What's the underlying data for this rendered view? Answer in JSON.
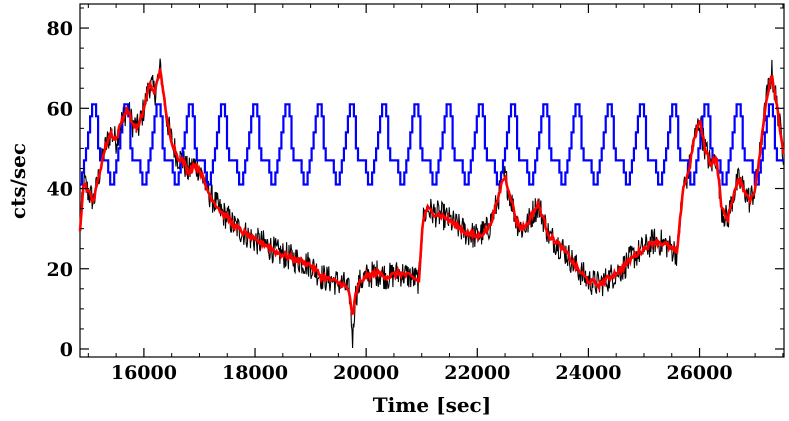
{
  "chart_data": {
    "type": "line",
    "title": "",
    "xlabel": "Time [sec]",
    "ylabel": "cts/sec",
    "xlim": [
      14850,
      27520
    ],
    "ylim": [
      -2,
      86
    ],
    "xticks": [
      16000,
      18000,
      20000,
      22000,
      24000,
      26000
    ],
    "yticks": [
      0,
      20,
      40,
      60,
      80
    ],
    "grid": false,
    "legend": "none",
    "series": [
      {
        "style": "noisy-raw",
        "color": "#000000",
        "noise_amplitude": 3.5,
        "x": [
          14850,
          14920,
          15000,
          15100,
          15200,
          15300,
          15400,
          15500,
          15600,
          15700,
          15800,
          15900,
          16000,
          16100,
          16200,
          16300,
          16400,
          16500,
          16600,
          16700,
          16800,
          16900,
          17000,
          17100,
          17200,
          17300,
          17400,
          17500,
          17600,
          17800,
          18000,
          18200,
          18400,
          18600,
          18800,
          19000,
          19200,
          19400,
          19600,
          19700,
          19760,
          19800,
          19850,
          19900,
          20000,
          20200,
          20400,
          20600,
          20800,
          20950,
          21020,
          21100,
          21200,
          21400,
          21600,
          21800,
          22000,
          22200,
          22350,
          22450,
          22500,
          22600,
          22700,
          22800,
          22900,
          23000,
          23100,
          23200,
          23300,
          23400,
          23600,
          23800,
          24000,
          24200,
          24400,
          24600,
          24800,
          25000,
          25200,
          25400,
          25600,
          25700,
          25800,
          25900,
          26000,
          26100,
          26200,
          26300,
          26400,
          26500,
          26600,
          26700,
          26800,
          26900,
          27000,
          27100,
          27200,
          27300,
          27400,
          27520
        ],
        "values": [
          30,
          42,
          39,
          37,
          44,
          50,
          54,
          52,
          57,
          60,
          56,
          55,
          60,
          66,
          64,
          70,
          58,
          52,
          48,
          47,
          44,
          46,
          45,
          41,
          38,
          36,
          34,
          33,
          31,
          29,
          27,
          26,
          24,
          23,
          22,
          21,
          18,
          17,
          16,
          14,
          2,
          13,
          15,
          17,
          18,
          19,
          18,
          19,
          18,
          17,
          32,
          35,
          34,
          33,
          31,
          29,
          28,
          30,
          36,
          42,
          43,
          38,
          32,
          30,
          31,
          34,
          36,
          32,
          28,
          27,
          24,
          20,
          17,
          16,
          18,
          20,
          23,
          25,
          27,
          26,
          24,
          40,
          44,
          52,
          57,
          50,
          46,
          48,
          35,
          32,
          38,
          42,
          40,
          37,
          40,
          50,
          62,
          69,
          60,
          48
        ]
      },
      {
        "style": "smoothed",
        "color": "#ff0000",
        "x": [
          14850,
          14920,
          15000,
          15100,
          15200,
          15300,
          15400,
          15500,
          15600,
          15700,
          15800,
          15900,
          16000,
          16100,
          16200,
          16300,
          16400,
          16500,
          16600,
          16700,
          16800,
          16900,
          17000,
          17100,
          17200,
          17300,
          17400,
          17500,
          17600,
          17800,
          18000,
          18200,
          18400,
          18600,
          18800,
          19000,
          19200,
          19400,
          19600,
          19700,
          19760,
          19800,
          19850,
          19900,
          20000,
          20200,
          20400,
          20600,
          20800,
          20950,
          21020,
          21100,
          21200,
          21400,
          21600,
          21800,
          22000,
          22200,
          22350,
          22450,
          22500,
          22600,
          22700,
          22800,
          22900,
          23000,
          23100,
          23200,
          23300,
          23400,
          23600,
          23800,
          24000,
          24200,
          24400,
          24600,
          24800,
          25000,
          25200,
          25400,
          25600,
          25700,
          25800,
          25900,
          26000,
          26100,
          26200,
          26300,
          26400,
          26500,
          26600,
          26700,
          26800,
          26900,
          27000,
          27100,
          27200,
          27300,
          27400,
          27520
        ],
        "values": [
          30,
          42,
          39,
          37,
          44,
          50,
          54,
          52,
          57,
          60,
          56,
          55,
          60,
          66,
          64,
          70,
          58,
          52,
          48,
          47,
          44,
          46,
          45,
          41,
          38,
          36,
          34,
          33,
          31,
          29,
          27,
          26,
          24,
          23,
          22,
          21,
          18,
          17,
          16,
          14,
          7,
          13,
          15,
          17,
          18,
          19,
          18,
          19,
          18,
          17,
          32,
          35,
          34,
          33,
          31,
          29,
          28,
          30,
          36,
          42,
          43,
          38,
          32,
          30,
          31,
          34,
          36,
          32,
          28,
          27,
          24,
          20,
          17,
          16,
          18,
          20,
          23,
          25,
          27,
          26,
          24,
          40,
          44,
          52,
          57,
          50,
          46,
          48,
          35,
          32,
          38,
          42,
          40,
          37,
          40,
          50,
          62,
          69,
          60,
          48
        ]
      },
      {
        "style": "periodic-step",
        "color": "#0000ff",
        "period": 580,
        "phase": 180,
        "levels": [
          47,
          47,
          44,
          41,
          41,
          44,
          47,
          50,
          54,
          58,
          61,
          61,
          58,
          50,
          47,
          47
        ],
        "x_start": 14850,
        "x_end": 27520
      }
    ]
  }
}
